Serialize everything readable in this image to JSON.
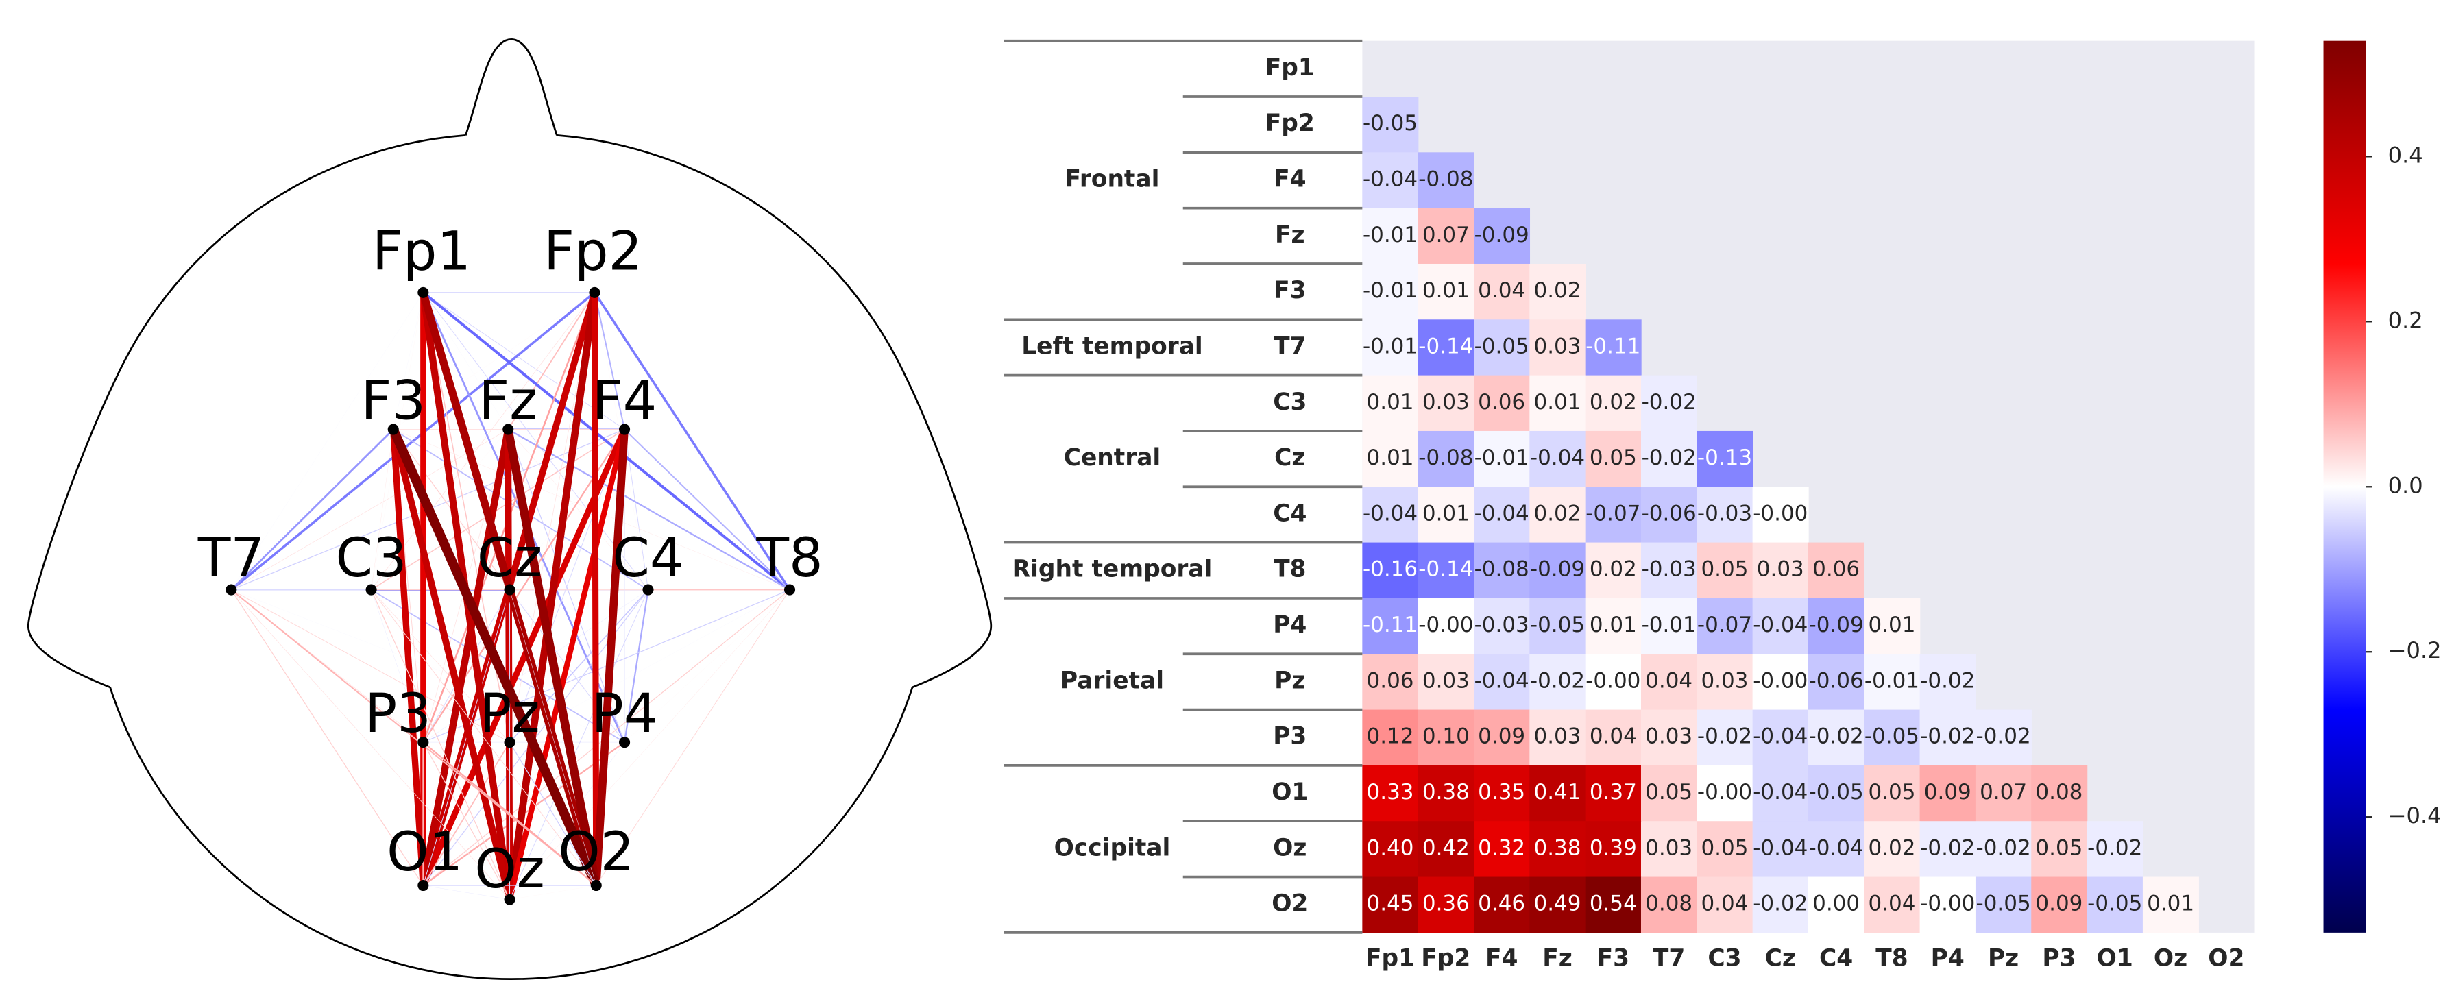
{
  "chart_data": [
    {
      "type": "network",
      "nodes": [
        "Fp1",
        "Fp2",
        "F4",
        "Fz",
        "F3",
        "T7",
        "C3",
        "Cz",
        "C4",
        "T8",
        "P4",
        "Pz",
        "P3",
        "O1",
        "Oz",
        "O2"
      ]
    },
    {
      "type": "heatmap",
      "groups": [
        {
          "name": "Frontal",
          "channels": [
            "Fp1",
            "Fp2",
            "F4",
            "Fz",
            "F3"
          ]
        },
        {
          "name": "Left temporal",
          "channels": [
            "T7"
          ]
        },
        {
          "name": "Central",
          "channels": [
            "C3",
            "Cz",
            "C4"
          ]
        },
        {
          "name": "Right temporal",
          "channels": [
            "T8"
          ]
        },
        {
          "name": "Parietal",
          "channels": [
            "P4",
            "Pz",
            "P3"
          ]
        },
        {
          "name": "Occipital",
          "channels": [
            "O1",
            "Oz",
            "O2"
          ]
        }
      ],
      "columns": [
        "Fp1",
        "Fp2",
        "F4",
        "Fz",
        "F3",
        "T7",
        "C3",
        "Cz",
        "C4",
        "T8",
        "P4",
        "Pz",
        "P3",
        "O1",
        "Oz",
        "O2"
      ],
      "values": [
        [],
        [
          -0.05
        ],
        [
          -0.04,
          -0.08
        ],
        [
          -0.01,
          0.07,
          -0.09
        ],
        [
          -0.01,
          0.01,
          0.04,
          0.02
        ],
        [
          -0.01,
          -0.14,
          -0.05,
          0.03,
          -0.11
        ],
        [
          0.01,
          0.03,
          0.06,
          0.01,
          0.02,
          -0.02
        ],
        [
          0.01,
          -0.08,
          -0.01,
          -0.04,
          0.05,
          -0.02,
          -0.13
        ],
        [
          -0.04,
          0.01,
          -0.04,
          0.02,
          -0.07,
          -0.06,
          -0.03,
          0
        ],
        [
          -0.16,
          -0.14,
          -0.08,
          -0.09,
          0.02,
          -0.03,
          0.05,
          0.03,
          0.06
        ],
        [
          -0.11,
          0,
          -0.03,
          -0.05,
          0.01,
          -0.01,
          -0.07,
          -0.04,
          -0.09,
          0.01
        ],
        [
          0.06,
          0.03,
          -0.04,
          -0.02,
          0,
          0.04,
          0.03,
          0,
          -0.06,
          -0.01,
          -0.02
        ],
        [
          0.12,
          0.1,
          0.09,
          0.03,
          0.04,
          0.03,
          -0.02,
          -0.04,
          -0.02,
          -0.05,
          -0.02,
          -0.02
        ],
        [
          0.33,
          0.38,
          0.35,
          0.41,
          0.37,
          0.05,
          0,
          -0.04,
          -0.05,
          0.05,
          0.09,
          0.07,
          0.08
        ],
        [
          0.4,
          0.42,
          0.32,
          0.38,
          0.39,
          0.03,
          0.05,
          -0.04,
          -0.04,
          0.02,
          -0.02,
          -0.02,
          0.05,
          -0.02
        ],
        [
          0.45,
          0.36,
          0.46,
          0.49,
          0.54,
          0.08,
          0.04,
          -0.02,
          0,
          0.04,
          0,
          -0.05,
          0.09,
          -0.05,
          0.01
        ]
      ],
      "value_labels": [
        [],
        [
          "-0.05"
        ],
        [
          "-0.04",
          "-0.08"
        ],
        [
          "-0.01",
          "0.07",
          "-0.09"
        ],
        [
          "-0.01",
          "0.01",
          "0.04",
          "0.02"
        ],
        [
          "-0.01",
          "-0.14",
          "-0.05",
          "0.03",
          "-0.11"
        ],
        [
          "0.01",
          "0.03",
          "0.06",
          "0.01",
          "0.02",
          "-0.02"
        ],
        [
          "0.01",
          "-0.08",
          "-0.01",
          "-0.04",
          "0.05",
          "-0.02",
          "-0.13"
        ],
        [
          "-0.04",
          "0.01",
          "-0.04",
          "0.02",
          "-0.07",
          "-0.06",
          "-0.03",
          "-0.00"
        ],
        [
          "-0.16",
          "-0.14",
          "-0.08",
          "-0.09",
          "0.02",
          "-0.03",
          "0.05",
          "0.03",
          "0.06"
        ],
        [
          "-0.11",
          "-0.00",
          "-0.03",
          "-0.05",
          "0.01",
          "-0.01",
          "-0.07",
          "-0.04",
          "-0.09",
          "0.01"
        ],
        [
          "0.06",
          "0.03",
          "-0.04",
          "-0.02",
          "-0.00",
          "0.04",
          "0.03",
          "-0.00",
          "-0.06",
          "-0.01",
          "-0.02"
        ],
        [
          "0.12",
          "0.10",
          "0.09",
          "0.03",
          "0.04",
          "0.03",
          "-0.02",
          "-0.04",
          "-0.02",
          "-0.05",
          "-0.02",
          "-0.02"
        ],
        [
          "0.33",
          "0.38",
          "0.35",
          "0.41",
          "0.37",
          "0.05",
          "-0.00",
          "-0.04",
          "-0.05",
          "0.05",
          "0.09",
          "0.07",
          "0.08"
        ],
        [
          "0.40",
          "0.42",
          "0.32",
          "0.38",
          "0.39",
          "0.03",
          "0.05",
          "-0.04",
          "-0.04",
          "0.02",
          "-0.02",
          "-0.02",
          "0.05",
          "-0.02"
        ],
        [
          "0.45",
          "0.36",
          "0.46",
          "0.49",
          "0.54",
          "0.08",
          "0.04",
          "-0.02",
          "0.00",
          "0.04",
          "-0.00",
          "-0.05",
          "0.09",
          "-0.05",
          "0.01"
        ]
      ],
      "colormap": "seismic",
      "clim": [
        -0.54,
        0.54
      ],
      "cticks": [
        {
          "value": -0.4,
          "label": "−0.4"
        },
        {
          "value": -0.2,
          "label": "−0.2"
        },
        {
          "value": 0,
          "label": "0.0"
        },
        0.2,
        0.4
      ]
    }
  ]
}
